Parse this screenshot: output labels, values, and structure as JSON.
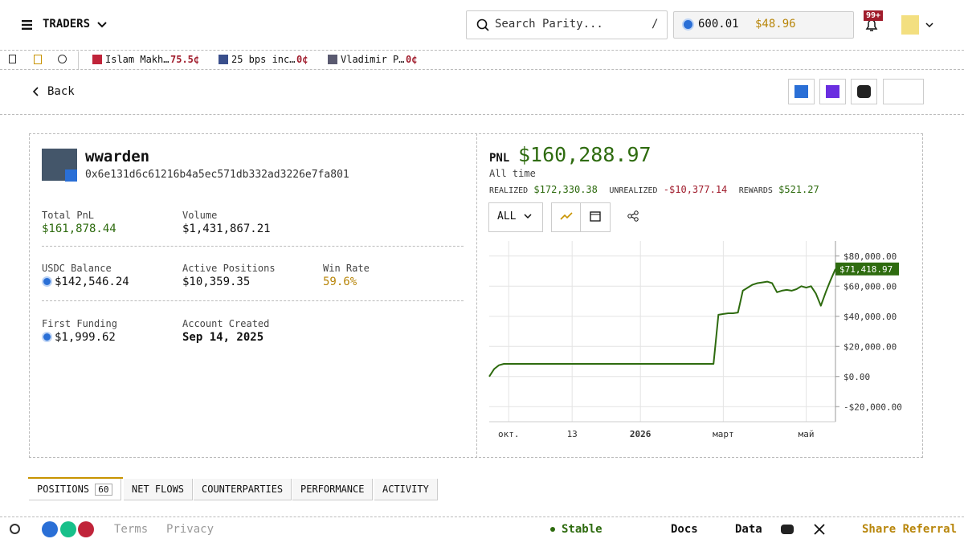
{
  "header": {
    "menu": "TRADERS",
    "search_placeholder": "Search Parity...",
    "search_shortcut": "/",
    "balance": "600.01",
    "cash": "$48.96",
    "notifications": "99+"
  },
  "tickers": [
    {
      "name": "Islam Makh…",
      "price": "75.5¢"
    },
    {
      "name": "25 bps inc…",
      "price": "0¢"
    },
    {
      "name": "Vladimir P…",
      "price": "0¢"
    }
  ],
  "nav": {
    "back": "Back"
  },
  "profile": {
    "name": "wwarden",
    "address": "0x6e131d6c61216b4a5ec571db332ad3226e7fa801"
  },
  "stats": [
    {
      "label": "Total PnL",
      "value": "$161,878.44"
    },
    {
      "label": "Volume",
      "value": "$1,431,867.21"
    },
    {
      "label": "USDC Balance",
      "value": "$142,546.24"
    },
    {
      "label": "Active Positions",
      "value": "$10,359.35"
    },
    {
      "label": "Win Rate",
      "value": "59.6%"
    },
    {
      "label": "First Funding",
      "value": "$1,999.62"
    },
    {
      "label": "Account Created",
      "value": "Sep 14, 2025"
    }
  ],
  "pnl": {
    "label": "PNL",
    "value": "$160,288.97",
    "period": "All time",
    "realized_label": "REALIZED",
    "realized": "$172,330.38",
    "unrealized_label": "UNREALIZED",
    "unrealized": "-$10,377.14",
    "rewards_label": "REWARDS",
    "rewards": "$521.27",
    "range": "ALL"
  },
  "chart_data": {
    "type": "line",
    "categories": [
      null,
      null,
      null,
      null,
      "окт.",
      null,
      null,
      null,
      null,
      null,
      null,
      null,
      null,
      null,
      null,
      null,
      null,
      "13",
      null,
      null,
      null,
      null,
      null,
      null,
      null,
      null,
      null,
      null,
      null,
      null,
      null,
      "2026",
      null,
      null,
      null,
      null,
      null,
      null,
      null,
      null,
      null,
      null,
      null,
      null,
      null,
      null,
      null,
      null,
      "март",
      null,
      null,
      null,
      null,
      null,
      null,
      null,
      null,
      null,
      null,
      null,
      null,
      null,
      null,
      null,
      null,
      "май",
      null,
      null,
      null,
      null,
      null,
      null
    ],
    "values": [
      0,
      5000,
      7500,
      8400,
      8400,
      8400,
      8400,
      8400,
      8400,
      8400,
      8400,
      8400,
      8400,
      8400,
      8400,
      8400,
      8400,
      8400,
      8400,
      8400,
      8400,
      8400,
      8400,
      8400,
      8400,
      8400,
      8400,
      8400,
      8400,
      8400,
      8400,
      8400,
      8400,
      8400,
      8400,
      8400,
      8400,
      8400,
      8400,
      8400,
      8400,
      8400,
      8400,
      8400,
      8400,
      8400,
      8400,
      41000,
      41500,
      42000,
      42000,
      42500,
      57000,
      59000,
      61000,
      62000,
      62500,
      63000,
      62000,
      56000,
      57000,
      57500,
      57000,
      58000,
      60000,
      59000,
      60000,
      55000,
      47000,
      56000,
      64000,
      71418.97
    ],
    "value_labels": {
      "71": "$71,418.97"
    },
    "color": "#2e6b0f",
    "ylim": [
      -30000,
      90000
    ],
    "yticks": [
      {
        "value": -20000,
        "label": "-$20,000.00"
      },
      {
        "value": 0,
        "label": "$0.00"
      },
      {
        "value": 20000,
        "label": "$20,000.00"
      },
      {
        "value": 40000,
        "label": "$40,000.00"
      },
      {
        "value": 60000,
        "label": "$60,000.00"
      },
      {
        "value": 80000,
        "label": "$80,000.00"
      }
    ],
    "grid": true
  },
  "tabs": [
    {
      "label": "POSITIONS",
      "count": "60"
    },
    {
      "label": "NET FLOWS"
    },
    {
      "label": "COUNTERPARTIES"
    },
    {
      "label": "PERFORMANCE"
    },
    {
      "label": "ACTIVITY"
    }
  ],
  "footer": {
    "terms": "Terms",
    "privacy": "Privacy",
    "status": "Stable",
    "docs": "Docs",
    "data": "Data",
    "referral": "Share Referral"
  }
}
